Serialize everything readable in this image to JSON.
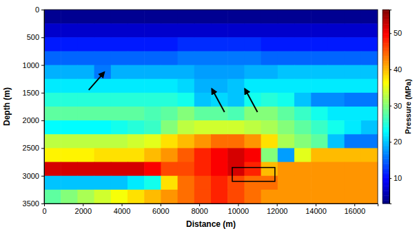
{
  "chart_data": {
    "type": "heatmap",
    "x_label": "Distance (m)",
    "y_label": "Depth (m)",
    "xlim": [
      0,
      17200
    ],
    "ylim": [
      0,
      3500
    ],
    "xticks": [
      0,
      2000,
      4000,
      6000,
      8000,
      10000,
      12000,
      14000,
      16000
    ],
    "yticks": [
      0,
      500,
      1000,
      1500,
      2000,
      2500,
      3000,
      3500
    ],
    "x": [
      0,
      860,
      1720,
      2580,
      3440,
      4300,
      5160,
      6020,
      6880,
      7740,
      8600,
      9460,
      10320,
      11180,
      12040,
      12900,
      13760,
      14620,
      15480,
      16340,
      17200
    ],
    "y": [
      0,
      250,
      500,
      750,
      1000,
      1250,
      1500,
      1750,
      2000,
      2250,
      2500,
      2750,
      3000,
      3250,
      3500
    ],
    "z": [
      [
        4,
        4,
        4,
        4,
        4,
        4,
        4,
        4,
        4,
        4,
        4,
        4,
        4,
        4,
        4,
        4,
        4,
        4,
        4,
        4
      ],
      [
        7,
        7,
        7,
        7,
        7,
        7,
        7,
        7,
        7,
        7,
        7,
        7,
        7,
        7,
        7,
        7,
        7,
        7,
        7,
        7
      ],
      [
        11,
        11,
        11,
        11,
        11,
        11,
        11,
        11,
        12,
        12,
        12,
        12,
        12,
        11,
        11,
        11,
        11,
        11,
        11,
        11
      ],
      [
        15,
        15,
        15,
        15,
        15,
        15,
        15,
        15,
        16,
        16,
        16,
        16,
        16,
        15,
        15,
        15,
        15,
        15,
        15,
        15
      ],
      [
        19,
        19,
        19,
        16,
        19,
        19,
        19,
        19,
        19,
        18,
        18,
        18,
        19,
        19,
        20,
        20,
        20,
        20,
        20,
        20
      ],
      [
        22,
        22,
        22,
        22,
        22,
        22,
        22,
        22,
        21,
        19,
        19,
        20,
        22,
        22,
        22,
        22,
        22,
        22,
        22,
        22
      ],
      [
        25,
        25,
        25,
        25,
        25,
        25,
        25,
        25,
        24,
        20,
        21,
        20,
        24,
        25,
        24,
        20,
        17,
        17,
        16,
        16
      ],
      [
        28,
        28,
        28,
        28,
        28,
        28,
        27,
        28,
        30,
        28,
        28,
        27,
        30,
        30,
        28,
        26,
        24,
        22,
        22,
        22
      ],
      [
        23,
        23,
        23,
        23,
        24,
        25,
        26,
        30,
        33,
        34,
        34,
        34,
        33,
        32,
        30,
        28,
        26,
        24,
        22,
        20
      ],
      [
        33,
        33,
        33,
        33,
        33,
        34,
        35,
        38,
        40,
        42,
        44,
        44,
        42,
        38,
        32,
        30,
        28,
        20,
        16,
        16
      ],
      [
        37,
        37,
        37,
        38,
        38,
        38,
        40,
        42,
        45,
        48,
        50,
        52,
        50,
        30,
        18,
        35,
        40,
        40,
        40,
        40
      ],
      [
        52,
        52,
        52,
        52,
        52,
        52,
        50,
        46,
        46,
        48,
        50,
        52,
        48,
        40,
        42,
        42,
        42,
        42,
        42,
        42
      ],
      [
        20,
        20,
        20,
        20,
        20,
        22,
        24,
        38,
        44,
        46,
        48,
        46,
        44,
        44,
        42,
        42,
        42,
        42,
        42,
        42
      ],
      [
        28,
        30,
        32,
        34,
        36,
        38,
        40,
        42,
        44,
        46,
        48,
        46,
        44,
        42,
        42,
        42,
        42,
        42,
        42,
        42
      ]
    ],
    "colorbar": {
      "label": "Pressure (MPa)",
      "range": [
        3,
        56.5
      ],
      "ticks": [
        10,
        20,
        30,
        40,
        50
      ]
    }
  }
}
